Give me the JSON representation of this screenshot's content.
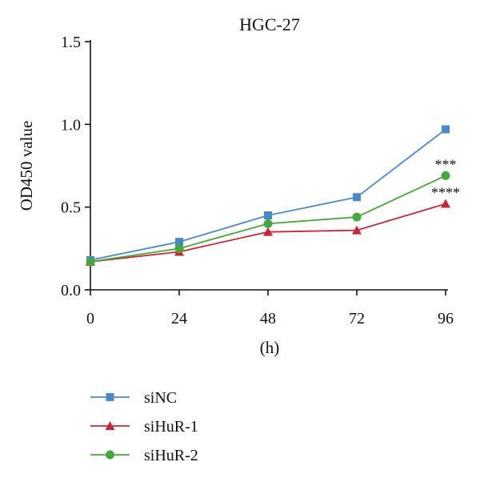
{
  "chart_data": {
    "type": "line",
    "title": "HGC-27",
    "xlabel": "(h)",
    "ylabel": "OD450 value",
    "x": [
      0,
      24,
      48,
      72,
      96
    ],
    "xlim": [
      0,
      96
    ],
    "ylim": [
      0,
      1.5
    ],
    "xticks": [
      "0",
      "24",
      "48",
      "72",
      "96"
    ],
    "yticks": [
      "0.0",
      "0.5",
      "1.0",
      "1.5"
    ],
    "grid": false,
    "legend_position": "bottom-left",
    "series": [
      {
        "name": "siNC",
        "values": [
          0.18,
          0.29,
          0.45,
          0.56,
          0.97
        ],
        "color": "#4a8ac9",
        "marker": "square"
      },
      {
        "name": "siHuR-1",
        "values": [
          0.17,
          0.23,
          0.35,
          0.36,
          0.52
        ],
        "color": "#c8273a",
        "marker": "triangle"
      },
      {
        "name": "siHuR-2",
        "values": [
          0.17,
          0.25,
          0.4,
          0.44,
          0.69
        ],
        "color": "#46a83c",
        "marker": "circle"
      }
    ],
    "annotations": [
      {
        "text": "***",
        "x": 96,
        "series": "siHuR-2"
      },
      {
        "text": "****",
        "x": 96,
        "series": "siHuR-1"
      }
    ]
  }
}
